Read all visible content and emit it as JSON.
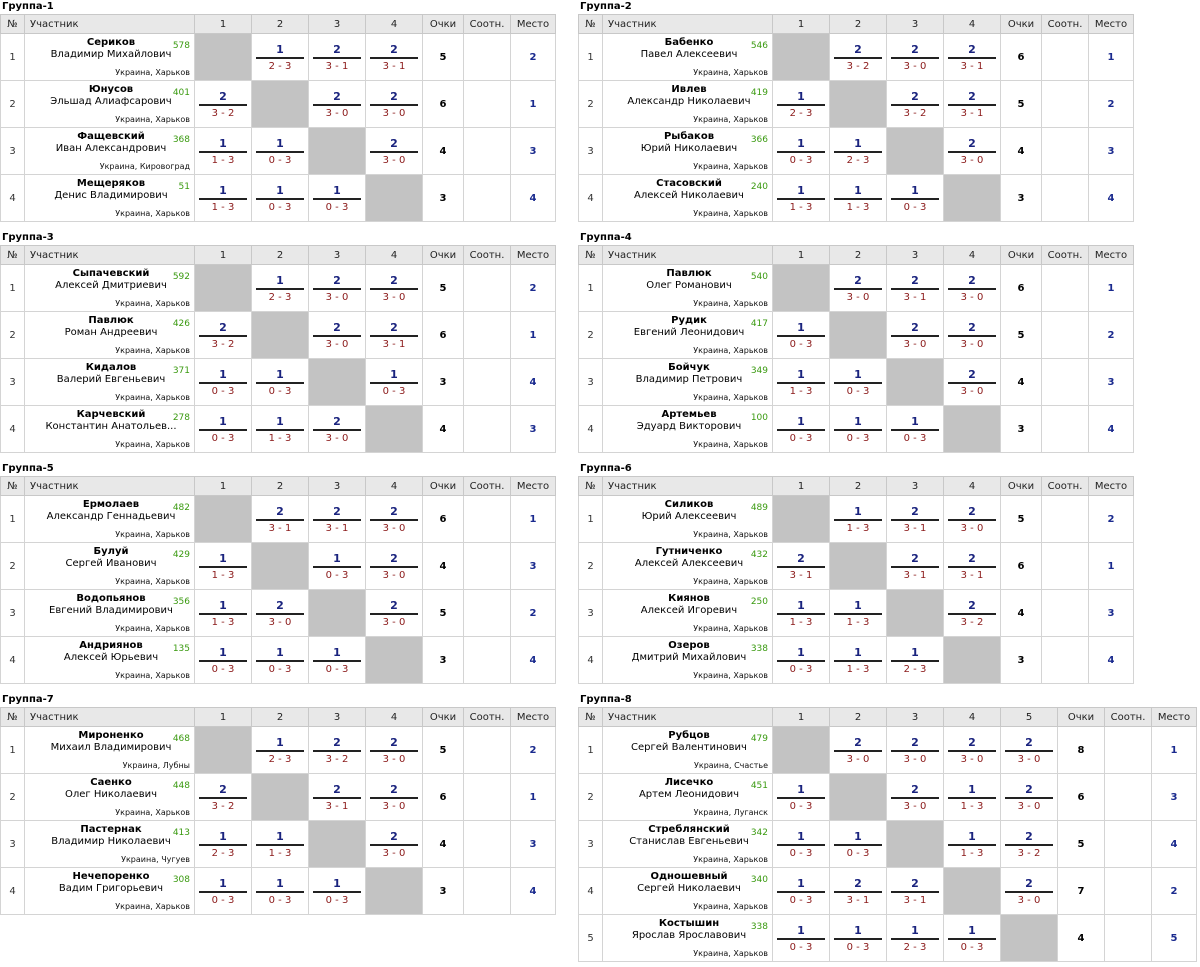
{
  "headers": {
    "num": "№",
    "player": "Участник",
    "points": "Очки",
    "ratio": "Соотн.",
    "place": "Место"
  },
  "groups": [
    {
      "title": "Группа-1",
      "cols": [
        "1",
        "2",
        "3",
        "4"
      ],
      "rows": [
        {
          "n": "1",
          "last": "Сериков",
          "first": "Владимир Михайлович",
          "rating": "578",
          "city": "Украина, Харьков",
          "results": [
            null,
            [
              "1",
              "2 - 3"
            ],
            [
              "2",
              "3 - 1"
            ],
            [
              "2",
              "3 - 1"
            ]
          ],
          "points": "5",
          "ratio": "",
          "place": "2"
        },
        {
          "n": "2",
          "last": "Юнусов",
          "first": "Эльшад Алиафсарович",
          "rating": "401",
          "city": "Украина, Харьков",
          "results": [
            [
              "2",
              "3 - 2"
            ],
            null,
            [
              "2",
              "3 - 0"
            ],
            [
              "2",
              "3 - 0"
            ]
          ],
          "points": "6",
          "ratio": "",
          "place": "1"
        },
        {
          "n": "3",
          "last": "Фащевский",
          "first": "Иван Александрович",
          "rating": "368",
          "city": "Украина, Кировоград",
          "results": [
            [
              "1",
              "1 - 3"
            ],
            [
              "1",
              "0 - 3"
            ],
            null,
            [
              "2",
              "3 - 0"
            ]
          ],
          "points": "4",
          "ratio": "",
          "place": "3"
        },
        {
          "n": "4",
          "last": "Мещеряков",
          "first": "Денис Владимирович",
          "rating": "51",
          "city": "Украина, Харьков",
          "results": [
            [
              "1",
              "1 - 3"
            ],
            [
              "1",
              "0 - 3"
            ],
            [
              "1",
              "0 - 3"
            ],
            null
          ],
          "points": "3",
          "ratio": "",
          "place": "4"
        }
      ]
    },
    {
      "title": "Группа-2",
      "cols": [
        "1",
        "2",
        "3",
        "4"
      ],
      "rows": [
        {
          "n": "1",
          "last": "Бабенко",
          "first": "Павел Алексеевич",
          "rating": "546",
          "city": "Украина, Харьков",
          "results": [
            null,
            [
              "2",
              "3 - 2"
            ],
            [
              "2",
              "3 - 0"
            ],
            [
              "2",
              "3 - 1"
            ]
          ],
          "points": "6",
          "ratio": "",
          "place": "1"
        },
        {
          "n": "2",
          "last": "Ивлев",
          "first": "Александр Николаевич",
          "rating": "419",
          "city": "Украина, Харьков",
          "results": [
            [
              "1",
              "2 - 3"
            ],
            null,
            [
              "2",
              "3 - 2"
            ],
            [
              "2",
              "3 - 1"
            ]
          ],
          "points": "5",
          "ratio": "",
          "place": "2"
        },
        {
          "n": "3",
          "last": "Рыбаков",
          "first": "Юрий Николаевич",
          "rating": "366",
          "city": "Украина, Харьков",
          "results": [
            [
              "1",
              "0 - 3"
            ],
            [
              "1",
              "2 - 3"
            ],
            null,
            [
              "2",
              "3 - 0"
            ]
          ],
          "points": "4",
          "ratio": "",
          "place": "3"
        },
        {
          "n": "4",
          "last": "Стасовский",
          "first": "Алексей Николаевич",
          "rating": "240",
          "city": "Украина, Харьков",
          "results": [
            [
              "1",
              "1 - 3"
            ],
            [
              "1",
              "1 - 3"
            ],
            [
              "1",
              "0 - 3"
            ],
            null
          ],
          "points": "3",
          "ratio": "",
          "place": "4"
        }
      ]
    },
    {
      "title": "Группа-3",
      "cols": [
        "1",
        "2",
        "3",
        "4"
      ],
      "rows": [
        {
          "n": "1",
          "last": "Сыпачевский",
          "first": "Алексей Дмитриевич",
          "rating": "592",
          "city": "Украина, Харьков",
          "results": [
            null,
            [
              "1",
              "2 - 3"
            ],
            [
              "2",
              "3 - 0"
            ],
            [
              "2",
              "3 - 0"
            ]
          ],
          "points": "5",
          "ratio": "",
          "place": "2"
        },
        {
          "n": "2",
          "last": "Павлюк",
          "first": "Роман Андреевич",
          "rating": "426",
          "city": "Украина, Харьков",
          "results": [
            [
              "2",
              "3 - 2"
            ],
            null,
            [
              "2",
              "3 - 0"
            ],
            [
              "2",
              "3 - 1"
            ]
          ],
          "points": "6",
          "ratio": "",
          "place": "1"
        },
        {
          "n": "3",
          "last": "Кидалов",
          "first": "Валерий Евгеньевич",
          "rating": "371",
          "city": "Украина, Харьков",
          "results": [
            [
              "1",
              "0 - 3"
            ],
            [
              "1",
              "0 - 3"
            ],
            null,
            [
              "1",
              "0 - 3"
            ]
          ],
          "points": "3",
          "ratio": "",
          "place": "4"
        },
        {
          "n": "4",
          "last": "Карчевский",
          "first": "Константин Анатольев...",
          "rating": "278",
          "city": "Украина, Харьков",
          "results": [
            [
              "1",
              "0 - 3"
            ],
            [
              "1",
              "1 - 3"
            ],
            [
              "2",
              "3 - 0"
            ],
            null
          ],
          "points": "4",
          "ratio": "",
          "place": "3"
        }
      ]
    },
    {
      "title": "Группа-4",
      "cols": [
        "1",
        "2",
        "3",
        "4"
      ],
      "rows": [
        {
          "n": "1",
          "last": "Павлюк",
          "first": "Олег Романович",
          "rating": "540",
          "city": "Украина, Харьков",
          "results": [
            null,
            [
              "2",
              "3 - 0"
            ],
            [
              "2",
              "3 - 1"
            ],
            [
              "2",
              "3 - 0"
            ]
          ],
          "points": "6",
          "ratio": "",
          "place": "1"
        },
        {
          "n": "2",
          "last": "Рудик",
          "first": "Евгений Леонидович",
          "rating": "417",
          "city": "Украина, Харьков",
          "results": [
            [
              "1",
              "0 - 3"
            ],
            null,
            [
              "2",
              "3 - 0"
            ],
            [
              "2",
              "3 - 0"
            ]
          ],
          "points": "5",
          "ratio": "",
          "place": "2"
        },
        {
          "n": "3",
          "last": "Бойчук",
          "first": "Владимир Петрович",
          "rating": "349",
          "city": "Украина, Харьков",
          "results": [
            [
              "1",
              "1 - 3"
            ],
            [
              "1",
              "0 - 3"
            ],
            null,
            [
              "2",
              "3 - 0"
            ]
          ],
          "points": "4",
          "ratio": "",
          "place": "3"
        },
        {
          "n": "4",
          "last": "Артемьев",
          "first": "Эдуард Викторович",
          "rating": "100",
          "city": "Украина, Харьков",
          "results": [
            [
              "1",
              "0 - 3"
            ],
            [
              "1",
              "0 - 3"
            ],
            [
              "1",
              "0 - 3"
            ],
            null
          ],
          "points": "3",
          "ratio": "",
          "place": "4"
        }
      ]
    },
    {
      "title": "Группа-5",
      "cols": [
        "1",
        "2",
        "3",
        "4"
      ],
      "rows": [
        {
          "n": "1",
          "last": "Ермолаев",
          "first": "Александр Геннадьевич",
          "rating": "482",
          "city": "Украина, Харьков",
          "results": [
            null,
            [
              "2",
              "3 - 1"
            ],
            [
              "2",
              "3 - 1"
            ],
            [
              "2",
              "3 - 0"
            ]
          ],
          "points": "6",
          "ratio": "",
          "place": "1"
        },
        {
          "n": "2",
          "last": "Булуй",
          "first": "Сергей Иванович",
          "rating": "429",
          "city": "Украина, Харьков",
          "results": [
            [
              "1",
              "1 - 3"
            ],
            null,
            [
              "1",
              "0 - 3"
            ],
            [
              "2",
              "3 - 0"
            ]
          ],
          "points": "4",
          "ratio": "",
          "place": "3"
        },
        {
          "n": "3",
          "last": "Водопьянов",
          "first": "Евгений Владимирович",
          "rating": "356",
          "city": "Украина, Харьков",
          "results": [
            [
              "1",
              "1 - 3"
            ],
            [
              "2",
              "3 - 0"
            ],
            null,
            [
              "2",
              "3 - 0"
            ]
          ],
          "points": "5",
          "ratio": "",
          "place": "2"
        },
        {
          "n": "4",
          "last": "Андриянов",
          "first": "Алексей Юрьевич",
          "rating": "135",
          "city": "Украина, Харьков",
          "results": [
            [
              "1",
              "0 - 3"
            ],
            [
              "1",
              "0 - 3"
            ],
            [
              "1",
              "0 - 3"
            ],
            null
          ],
          "points": "3",
          "ratio": "",
          "place": "4"
        }
      ]
    },
    {
      "title": "Группа-6",
      "cols": [
        "1",
        "2",
        "3",
        "4"
      ],
      "rows": [
        {
          "n": "1",
          "last": "Силиков",
          "first": "Юрий Алексеевич",
          "rating": "489",
          "city": "Украина, Харьков",
          "results": [
            null,
            [
              "1",
              "1 - 3"
            ],
            [
              "2",
              "3 - 1"
            ],
            [
              "2",
              "3 - 0"
            ]
          ],
          "points": "5",
          "ratio": "",
          "place": "2"
        },
        {
          "n": "2",
          "last": "Гутниченко",
          "first": "Алексей Алексеевич",
          "rating": "432",
          "city": "Украина, Харьков",
          "results": [
            [
              "2",
              "3 - 1"
            ],
            null,
            [
              "2",
              "3 - 1"
            ],
            [
              "2",
              "3 - 1"
            ]
          ],
          "points": "6",
          "ratio": "",
          "place": "1"
        },
        {
          "n": "3",
          "last": "Киянов",
          "first": "Алексей Игоревич",
          "rating": "250",
          "city": "Украина, Харьков",
          "results": [
            [
              "1",
              "1 - 3"
            ],
            [
              "1",
              "1 - 3"
            ],
            null,
            [
              "2",
              "3 - 2"
            ]
          ],
          "points": "4",
          "ratio": "",
          "place": "3"
        },
        {
          "n": "4",
          "last": "Озеров",
          "first": "Дмитрий Михайлович",
          "rating": "338",
          "city": "Украина, Харьков",
          "results": [
            [
              "1",
              "0 - 3"
            ],
            [
              "1",
              "1 - 3"
            ],
            [
              "1",
              "2 - 3"
            ],
            null
          ],
          "points": "3",
          "ratio": "",
          "place": "4"
        }
      ]
    },
    {
      "title": "Группа-7",
      "cols": [
        "1",
        "2",
        "3",
        "4"
      ],
      "rows": [
        {
          "n": "1",
          "last": "Мироненко",
          "first": "Михаил Владимирович",
          "rating": "468",
          "city": "Украина, Лубны",
          "results": [
            null,
            [
              "1",
              "2 - 3"
            ],
            [
              "2",
              "3 - 2"
            ],
            [
              "2",
              "3 - 0"
            ]
          ],
          "points": "5",
          "ratio": "",
          "place": "2"
        },
        {
          "n": "2",
          "last": "Саенко",
          "first": "Олег Николаевич",
          "rating": "448",
          "city": "Украина, Харьков",
          "results": [
            [
              "2",
              "3 - 2"
            ],
            null,
            [
              "2",
              "3 - 1"
            ],
            [
              "2",
              "3 - 0"
            ]
          ],
          "points": "6",
          "ratio": "",
          "place": "1"
        },
        {
          "n": "3",
          "last": "Пастернак",
          "first": "Владимир Николаевич",
          "rating": "413",
          "city": "Украина, Чугуев",
          "results": [
            [
              "1",
              "2 - 3"
            ],
            [
              "1",
              "1 - 3"
            ],
            null,
            [
              "2",
              "3 - 0"
            ]
          ],
          "points": "4",
          "ratio": "",
          "place": "3"
        },
        {
          "n": "4",
          "last": "Нечепоренко",
          "first": "Вадим Григорьевич",
          "rating": "308",
          "city": "Украина, Харьков",
          "results": [
            [
              "1",
              "0 - 3"
            ],
            [
              "1",
              "0 - 3"
            ],
            [
              "1",
              "0 - 3"
            ],
            null
          ],
          "points": "3",
          "ratio": "",
          "place": "4"
        }
      ]
    },
    {
      "title": "Группа-8",
      "cols": [
        "1",
        "2",
        "3",
        "4",
        "5"
      ],
      "rows": [
        {
          "n": "1",
          "last": "Рубцов",
          "first": "Сергей Валентинович",
          "rating": "479",
          "city": "Украина, Счастье",
          "results": [
            null,
            [
              "2",
              "3 - 0"
            ],
            [
              "2",
              "3 - 0"
            ],
            [
              "2",
              "3 - 0"
            ],
            [
              "2",
              "3 - 0"
            ]
          ],
          "points": "8",
          "ratio": "",
          "place": "1"
        },
        {
          "n": "2",
          "last": "Лисечко",
          "first": "Артем Леонидович",
          "rating": "451",
          "city": "Украина, Луганск",
          "results": [
            [
              "1",
              "0 - 3"
            ],
            null,
            [
              "2",
              "3 - 0"
            ],
            [
              "1",
              "1 - 3"
            ],
            [
              "2",
              "3 - 0"
            ]
          ],
          "points": "6",
          "ratio": "",
          "place": "3"
        },
        {
          "n": "3",
          "last": "Стреблянский",
          "first": "Станислав Евгеньевич",
          "rating": "342",
          "city": "Украина, Харьков",
          "results": [
            [
              "1",
              "0 - 3"
            ],
            [
              "1",
              "0 - 3"
            ],
            null,
            [
              "1",
              "1 - 3"
            ],
            [
              "2",
              "3 - 2"
            ]
          ],
          "points": "5",
          "ratio": "",
          "place": "4"
        },
        {
          "n": "4",
          "last": "Одношевный",
          "first": "Сергей Николаевич",
          "rating": "340",
          "city": "Украина, Харьков",
          "results": [
            [
              "1",
              "0 - 3"
            ],
            [
              "2",
              "3 - 1"
            ],
            [
              "2",
              "3 - 1"
            ],
            null,
            [
              "2",
              "3 - 0"
            ]
          ],
          "points": "7",
          "ratio": "",
          "place": "2"
        },
        {
          "n": "5",
          "last": "Костышин",
          "first": "Ярослав Ярославович",
          "rating": "338",
          "city": "Украина, Харьков",
          "results": [
            [
              "1",
              "0 - 3"
            ],
            [
              "1",
              "0 - 3"
            ],
            [
              "1",
              "2 - 3"
            ],
            [
              "1",
              "0 - 3"
            ],
            null
          ],
          "points": "4",
          "ratio": "",
          "place": "5"
        }
      ]
    }
  ]
}
